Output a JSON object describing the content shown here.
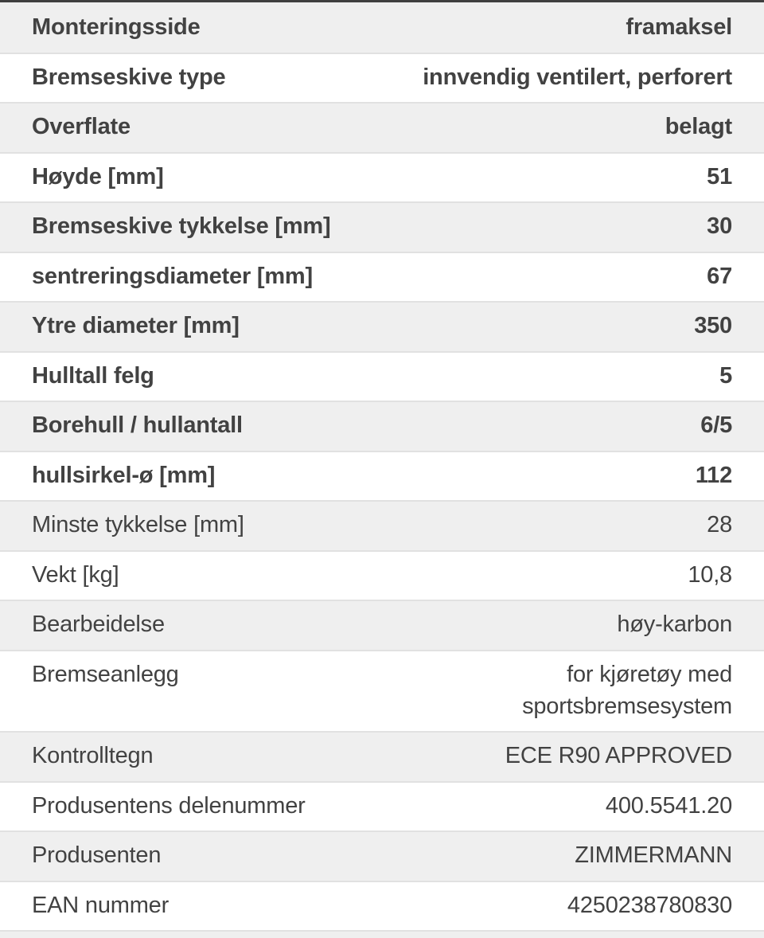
{
  "colors": {
    "shaded_row_bg": "#efefef",
    "divider": "#e1e1e1",
    "text": "#424242",
    "top_edge_bar": "#3f3f3f"
  },
  "table": {
    "rows": [
      {
        "label": "Monteringsside",
        "value": "framaksel",
        "bold": true,
        "shaded": true
      },
      {
        "label": "Bremseskive type",
        "value": "innvendig ventilert, perforert",
        "bold": true,
        "shaded": false
      },
      {
        "label": "Overflate",
        "value": "belagt",
        "bold": true,
        "shaded": true
      },
      {
        "label": "Høyde [mm]",
        "value": "51",
        "bold": true,
        "shaded": false
      },
      {
        "label": "Bremseskive tykkelse [mm]",
        "value": "30",
        "bold": true,
        "shaded": true
      },
      {
        "label": "sentreringsdiameter [mm]",
        "value": "67",
        "bold": true,
        "shaded": false
      },
      {
        "label": "Ytre diameter [mm]",
        "value": "350",
        "bold": true,
        "shaded": true
      },
      {
        "label": "Hulltall felg",
        "value": "5",
        "bold": true,
        "shaded": false
      },
      {
        "label": "Borehull / hullantall",
        "value": "6/5",
        "bold": true,
        "shaded": true
      },
      {
        "label": "hullsirkel-ø [mm]",
        "value": "112",
        "bold": true,
        "shaded": false
      },
      {
        "label": "Minste tykkelse [mm]",
        "value": "28",
        "bold": false,
        "shaded": true
      },
      {
        "label": "Vekt [kg]",
        "value": "10,8",
        "bold": false,
        "shaded": false
      },
      {
        "label": "Bearbeidelse",
        "value": "høy-karbon",
        "bold": false,
        "shaded": true
      },
      {
        "label": "Bremseanlegg",
        "value": "for kjøretøy med\nsportsbremsesystem",
        "bold": false,
        "shaded": false
      },
      {
        "label": "Kontrolltegn",
        "value": "ECE R90 APPROVED",
        "bold": false,
        "shaded": true
      },
      {
        "label": "Produsentens delenummer",
        "value": "400.5541.20",
        "bold": false,
        "shaded": false
      },
      {
        "label": "Produsenten",
        "value": "ZIMMERMANN",
        "bold": false,
        "shaded": true
      },
      {
        "label": "EAN nummer",
        "value": "4250238780830",
        "bold": false,
        "shaded": false
      }
    ]
  }
}
